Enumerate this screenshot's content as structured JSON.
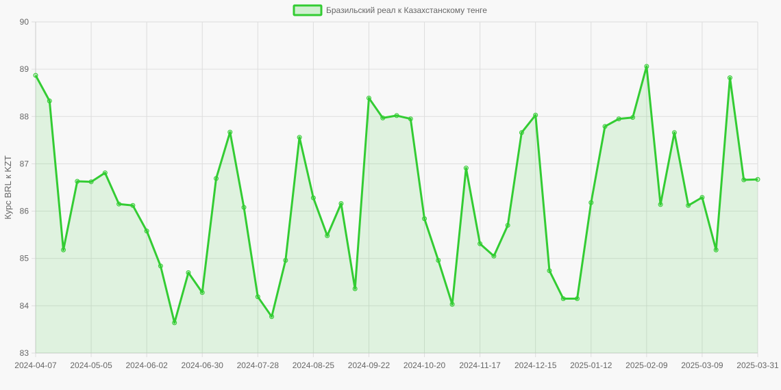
{
  "colors": {
    "line": "#33cc33",
    "fill": "#33cc33",
    "background": "#f8f8f8",
    "grid": "#dddddd",
    "text": "#666666"
  },
  "chart_data": {
    "type": "area",
    "title": "",
    "xlabel": "",
    "ylabel": "Курс BRL к KZT",
    "ylim": [
      83,
      90
    ],
    "y_ticks": [
      "83",
      "84",
      "85",
      "86",
      "87",
      "88",
      "89",
      "90"
    ],
    "x_tick_labels": [
      "2024-04-07",
      "2024-05-05",
      "2024-06-02",
      "2024-06-30",
      "2024-07-28",
      "2024-08-25",
      "2024-09-22",
      "2024-10-20",
      "2024-11-17",
      "2024-12-15",
      "2025-01-12",
      "2025-02-09",
      "2025-03-09",
      "2025-03-31"
    ],
    "legend": {
      "position": "top-center",
      "entries": [
        "Бразильский реал к Казахстанскому тенге"
      ]
    },
    "grid": true,
    "series": [
      {
        "name": "Бразильский реал к Казахстанскому тенге",
        "x": [
          "2024-04-07",
          "2024-04-14",
          "2024-04-21",
          "2024-04-28",
          "2024-05-05",
          "2024-05-12",
          "2024-05-19",
          "2024-05-26",
          "2024-06-02",
          "2024-06-09",
          "2024-06-16",
          "2024-06-23",
          "2024-06-30",
          "2024-07-07",
          "2024-07-14",
          "2024-07-21",
          "2024-07-28",
          "2024-08-04",
          "2024-08-11",
          "2024-08-18",
          "2024-08-25",
          "2024-09-01",
          "2024-09-08",
          "2024-09-15",
          "2024-09-22",
          "2024-09-29",
          "2024-10-06",
          "2024-10-13",
          "2024-10-20",
          "2024-10-27",
          "2024-11-03",
          "2024-11-10",
          "2024-11-17",
          "2024-11-24",
          "2024-12-01",
          "2024-12-08",
          "2024-12-15",
          "2024-12-22",
          "2024-12-29",
          "2025-01-05",
          "2025-01-12",
          "2025-01-19",
          "2025-01-26",
          "2025-02-02",
          "2025-02-09",
          "2025-02-16",
          "2025-02-23",
          "2025-03-02",
          "2025-03-09",
          "2025-03-16",
          "2025-03-23",
          "2025-03-30",
          "2025-03-31"
        ],
        "values": [
          88.87,
          88.33,
          85.18,
          86.63,
          86.62,
          86.81,
          86.15,
          86.12,
          85.58,
          84.84,
          83.64,
          84.7,
          84.28,
          86.69,
          87.67,
          86.08,
          84.19,
          83.77,
          84.96,
          87.56,
          86.28,
          85.48,
          86.16,
          84.36,
          88.39,
          87.97,
          88.02,
          87.95,
          85.84,
          84.96,
          84.03,
          86.91,
          85.31,
          85.05,
          85.7,
          87.66,
          88.03,
          84.74,
          84.15,
          84.15,
          86.18,
          87.79,
          87.95,
          87.98,
          89.06,
          86.14,
          87.66,
          86.12,
          86.29,
          85.18,
          88.82,
          86.66,
          86.67
        ]
      }
    ]
  }
}
